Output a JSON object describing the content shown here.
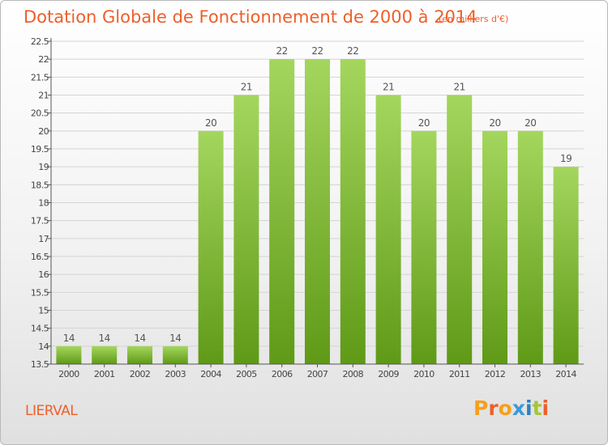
{
  "header": {
    "title": "Dotation Globale de Fonctionnement de 2000 à 2014",
    "unit": "(en milliers d'€)"
  },
  "footer": {
    "location": "LIERVAL",
    "logo_text": "Proxiti"
  },
  "colors": {
    "title": "#ee5f2a",
    "bar_light": "#a4d65e",
    "bar_dark": "#5f9a17",
    "logo_letters": [
      "#f5a01a",
      "#ee5f2a",
      "#f5a01a",
      "#3a9ad9",
      "#2f7fc1",
      "#a4c639",
      "#ee5f2a"
    ]
  },
  "chart_data": {
    "type": "bar",
    "categories": [
      "2000",
      "2001",
      "2002",
      "2003",
      "2004",
      "2005",
      "2006",
      "2007",
      "2008",
      "2009",
      "2010",
      "2011",
      "2012",
      "2013",
      "2014"
    ],
    "values": [
      14,
      14,
      14,
      14,
      20,
      21,
      22,
      22,
      22,
      21,
      20,
      21,
      20,
      20,
      19
    ],
    "ylim": [
      13.5,
      22.5
    ],
    "yticks": [
      "13.5",
      "14",
      "14.5",
      "15",
      "15.5",
      "16",
      "16.5",
      "17",
      "17.5",
      "18",
      "18.5",
      "19",
      "19.5",
      "20",
      "20.5",
      "21",
      "21.5",
      "22",
      "22.5"
    ],
    "title": "Dotation Globale de Fonctionnement de 2000 à 2014",
    "xlabel": "",
    "ylabel": "",
    "grid": true,
    "legend": "none"
  }
}
